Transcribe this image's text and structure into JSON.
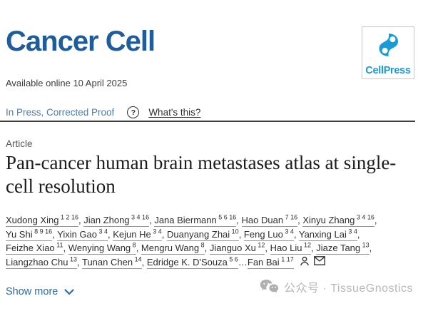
{
  "journal": {
    "name": "Cancer Cell"
  },
  "publisher": {
    "name": "CellPress"
  },
  "meta": {
    "available_online": "Available online 10 April 2025"
  },
  "status": {
    "label": "In Press, Corrected Proof",
    "help_glyph": "?",
    "whats_this": "What's this?"
  },
  "article": {
    "type_label": "Article",
    "title": "Pan-cancer human brain metastases atlas at single-cell resolution"
  },
  "authors": {
    "ellipsis": "…",
    "lines": [
      [
        {
          "name": "Xudong Xing",
          "sup": "1 2 16"
        },
        {
          "name": "Jian Zhong",
          "sup": "3 4 16"
        },
        {
          "name": "Jana Biermann",
          "sup": "5 6 16"
        },
        {
          "name": "Hao Duan",
          "sup": "7 16"
        },
        {
          "name": "Xinyu Zhang",
          "sup": "3 4 16"
        }
      ],
      [
        {
          "name": "Yu Shi",
          "sup": "8 9 16"
        },
        {
          "name": "Yixin Gao",
          "sup": "3 4"
        },
        {
          "name": "Kejun He",
          "sup": "3 4"
        },
        {
          "name": "Duanyang Zhai",
          "sup": "10"
        },
        {
          "name": "Feng Luo",
          "sup": "3 4"
        },
        {
          "name": "Yanxing Lai",
          "sup": "3 4"
        }
      ],
      [
        {
          "name": "Feizhe Xiao",
          "sup": "11"
        },
        {
          "name": "Wenying Wang",
          "sup": "8"
        },
        {
          "name": "Mengru Wang",
          "sup": "8"
        },
        {
          "name": "Jianguo Xu",
          "sup": "12"
        },
        {
          "name": "Hao Liu",
          "sup": "12"
        },
        {
          "name": "Jiaze Tang",
          "sup": "13"
        }
      ],
      [
        {
          "name": "Liangzhao Chu",
          "sup": "13"
        },
        {
          "name": "Tunan Chen",
          "sup": "14"
        },
        {
          "name": "Edridge K. D'Souza",
          "sup": "5 6",
          "sep": ""
        },
        {
          "name": "Fan Bai",
          "sup": "1 17",
          "ellipsis": true,
          "sep": ""
        }
      ]
    ]
  },
  "actions": {
    "show_more": "Show more"
  },
  "watermark": {
    "text": "公众号 · TissueGnostics"
  },
  "colors": {
    "journal_blue": "#1f5c99",
    "cellpress_blue": "#1b9ad6",
    "status_link_blue": "#4a7cae",
    "show_more_blue": "#2d6ba6",
    "watermark_gray": "#b7b7b7"
  }
}
